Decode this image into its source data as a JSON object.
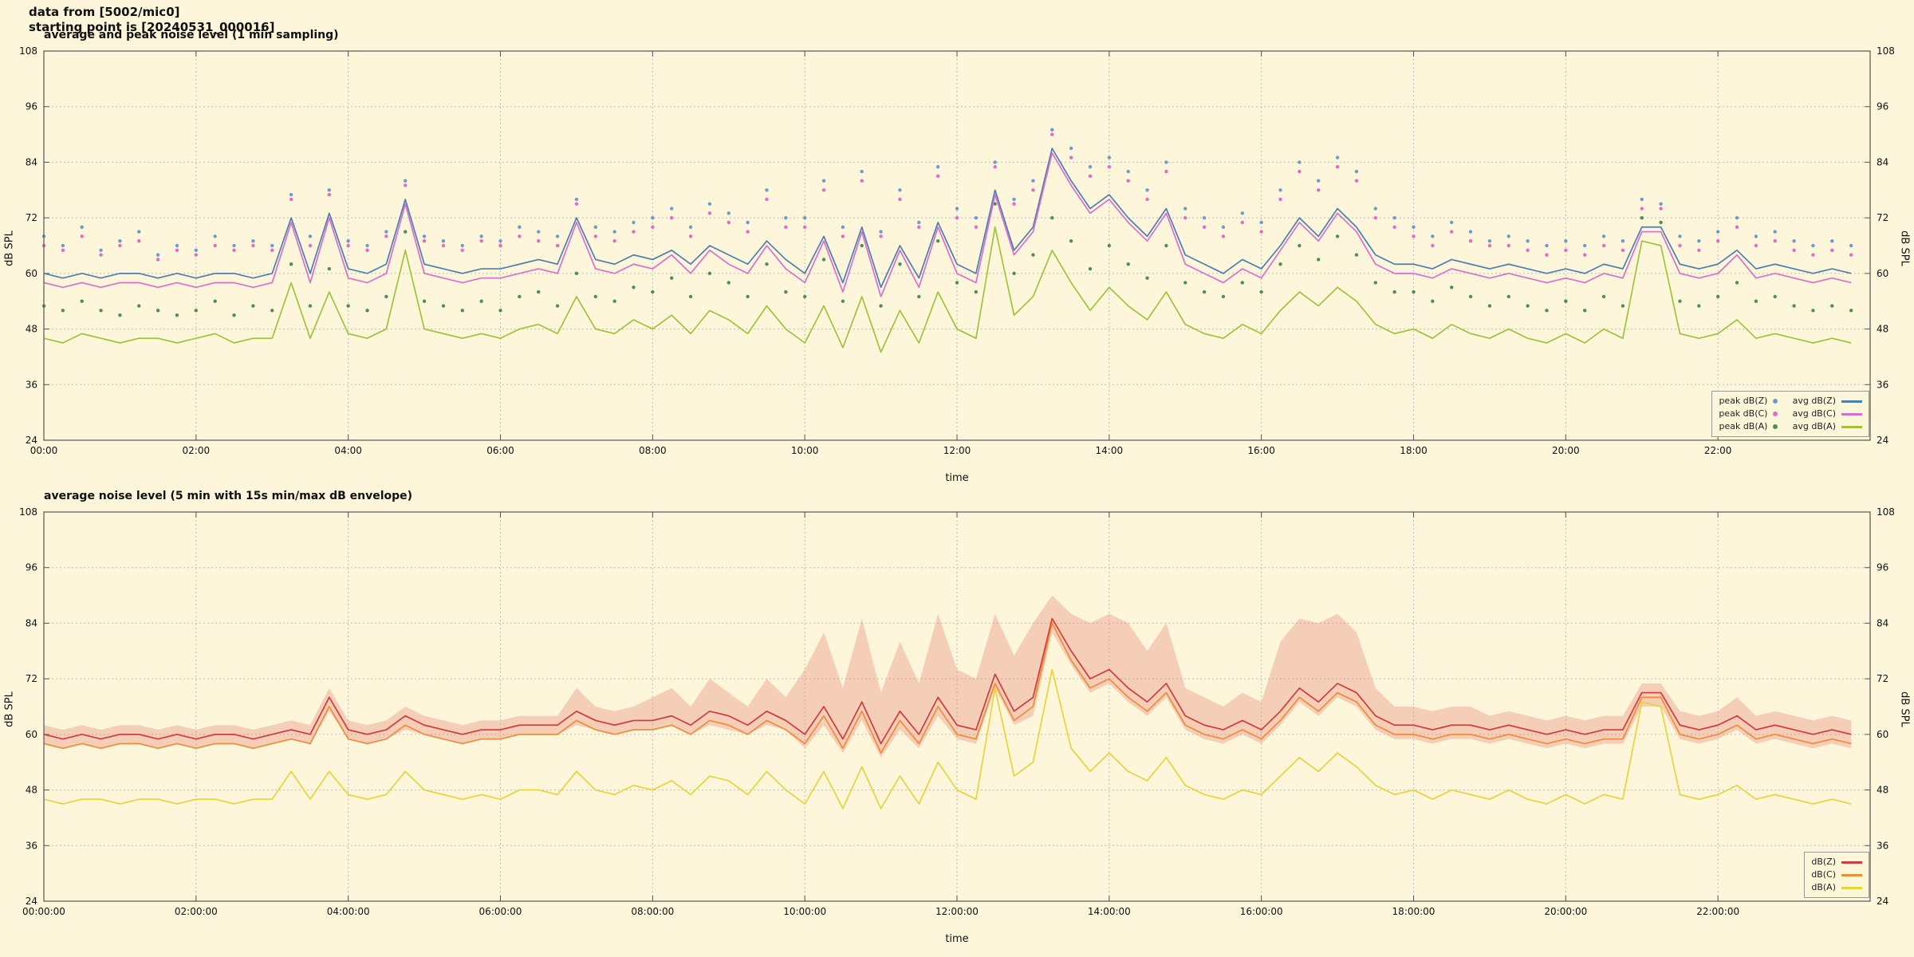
{
  "header": {
    "line1": "data from [5002/mic0]",
    "line2": "starting point is [20240531_000016]"
  },
  "colors": {
    "background": "#fdf6da",
    "grid": "#bdbdbd",
    "axis": "#555555"
  },
  "chart_data": [
    {
      "type": "line",
      "title": "average and peak noise level (1 min sampling)",
      "xlabel": "time",
      "ylabel": "dB SPL",
      "x_range": [
        0,
        24
      ],
      "y_range": [
        24,
        108
      ],
      "x_start": 0,
      "x_step": 0.25,
      "x_tick_step": 2,
      "x_tick_labels": [
        "00:00",
        "02:00",
        "04:00",
        "06:00",
        "08:00",
        "10:00",
        "12:00",
        "14:00",
        "16:00",
        "18:00",
        "20:00",
        "22:00"
      ],
      "y_ticks": [
        24,
        36,
        48,
        60,
        72,
        84,
        96,
        108
      ],
      "grid": true,
      "legend_position": "bottom-right",
      "legend_columns": [
        [
          0,
          1,
          2
        ],
        [
          3,
          4,
          5
        ]
      ],
      "series": [
        {
          "name": "peak dB(Z)",
          "type": "scatter",
          "color": "#6b9bd2",
          "values": [
            68,
            66,
            70,
            65,
            67,
            69,
            64,
            66,
            65,
            68,
            66,
            67,
            66,
            77,
            68,
            78,
            67,
            66,
            69,
            80,
            68,
            67,
            66,
            68,
            67,
            70,
            69,
            68,
            76,
            70,
            69,
            71,
            72,
            74,
            70,
            75,
            73,
            71,
            78,
            72,
            72,
            80,
            70,
            82,
            69,
            78,
            71,
            83,
            74,
            72,
            84,
            76,
            80,
            91,
            87,
            83,
            85,
            82,
            78,
            84,
            74,
            72,
            70,
            73,
            71,
            78,
            84,
            80,
            85,
            82,
            74,
            72,
            70,
            68,
            71,
            69,
            67,
            68,
            67,
            66,
            67,
            66,
            68,
            67,
            76,
            75,
            68,
            67,
            69,
            72,
            68,
            69,
            67,
            66,
            67,
            66
          ]
        },
        {
          "name": "peak dB(C)",
          "type": "scatter",
          "color": "#e36bc8",
          "values": [
            66,
            65,
            68,
            64,
            66,
            67,
            63,
            65,
            64,
            66,
            65,
            66,
            65,
            76,
            66,
            77,
            66,
            65,
            68,
            79,
            67,
            66,
            65,
            67,
            66,
            68,
            67,
            66,
            75,
            68,
            67,
            69,
            70,
            72,
            68,
            73,
            71,
            69,
            76,
            70,
            70,
            78,
            68,
            80,
            68,
            76,
            70,
            81,
            72,
            70,
            83,
            75,
            78,
            90,
            85,
            81,
            83,
            80,
            76,
            82,
            72,
            70,
            68,
            71,
            69,
            76,
            82,
            78,
            83,
            80,
            72,
            70,
            68,
            66,
            69,
            67,
            66,
            66,
            65,
            64,
            65,
            64,
            66,
            65,
            74,
            74,
            66,
            65,
            67,
            70,
            66,
            67,
            65,
            64,
            65,
            64
          ]
        },
        {
          "name": "peak dB(A)",
          "type": "scatter",
          "color": "#4f8f57",
          "values": [
            53,
            52,
            54,
            52,
            51,
            53,
            52,
            51,
            52,
            54,
            51,
            53,
            52,
            62,
            53,
            61,
            53,
            52,
            55,
            69,
            54,
            53,
            52,
            54,
            52,
            55,
            56,
            53,
            60,
            55,
            54,
            57,
            56,
            59,
            55,
            60,
            58,
            55,
            62,
            56,
            55,
            63,
            54,
            66,
            53,
            62,
            55,
            67,
            58,
            56,
            75,
            60,
            64,
            72,
            67,
            61,
            66,
            62,
            59,
            66,
            58,
            56,
            55,
            58,
            56,
            62,
            66,
            63,
            68,
            64,
            58,
            56,
            56,
            54,
            57,
            55,
            53,
            55,
            53,
            52,
            54,
            52,
            55,
            53,
            72,
            71,
            54,
            53,
            55,
            58,
            54,
            55,
            53,
            52,
            53,
            52
          ]
        },
        {
          "name": "avg dB(Z)",
          "type": "line",
          "color": "#4d7fae",
          "values": [
            60,
            59,
            60,
            59,
            60,
            60,
            59,
            60,
            59,
            60,
            60,
            59,
            60,
            72,
            60,
            73,
            61,
            60,
            62,
            76,
            62,
            61,
            60,
            61,
            61,
            62,
            63,
            62,
            72,
            63,
            62,
            64,
            63,
            65,
            62,
            66,
            64,
            62,
            67,
            63,
            60,
            68,
            58,
            70,
            57,
            66,
            59,
            71,
            62,
            60,
            78,
            65,
            70,
            87,
            80,
            74,
            77,
            72,
            68,
            74,
            64,
            62,
            60,
            63,
            61,
            66,
            72,
            68,
            74,
            70,
            64,
            62,
            62,
            61,
            63,
            62,
            61,
            62,
            61,
            60,
            61,
            60,
            62,
            61,
            70,
            70,
            62,
            61,
            62,
            65,
            61,
            62,
            61,
            60,
            61,
            60
          ]
        },
        {
          "name": "avg dB(C)",
          "type": "line",
          "color": "#d86fd0",
          "values": [
            58,
            57,
            58,
            57,
            58,
            58,
            57,
            58,
            57,
            58,
            58,
            57,
            58,
            71,
            58,
            72,
            59,
            58,
            60,
            75,
            60,
            59,
            58,
            59,
            59,
            60,
            61,
            60,
            71,
            61,
            60,
            62,
            61,
            64,
            60,
            65,
            62,
            60,
            66,
            61,
            58,
            67,
            56,
            69,
            55,
            65,
            57,
            70,
            60,
            58,
            77,
            64,
            69,
            86,
            79,
            73,
            76,
            71,
            67,
            73,
            62,
            60,
            58,
            61,
            59,
            65,
            71,
            67,
            73,
            69,
            62,
            60,
            60,
            59,
            61,
            60,
            59,
            60,
            59,
            58,
            59,
            58,
            60,
            59,
            69,
            69,
            60,
            59,
            60,
            64,
            59,
            60,
            59,
            58,
            59,
            58
          ]
        },
        {
          "name": "avg dB(A)",
          "type": "line",
          "color": "#9ec43c",
          "values": [
            46,
            45,
            47,
            46,
            45,
            46,
            46,
            45,
            46,
            47,
            45,
            46,
            46,
            58,
            46,
            56,
            47,
            46,
            48,
            65,
            48,
            47,
            46,
            47,
            46,
            48,
            49,
            47,
            55,
            48,
            47,
            50,
            48,
            51,
            47,
            52,
            50,
            47,
            53,
            48,
            45,
            53,
            44,
            55,
            43,
            52,
            45,
            56,
            48,
            46,
            70,
            51,
            55,
            65,
            58,
            52,
            57,
            53,
            50,
            56,
            49,
            47,
            46,
            49,
            47,
            52,
            56,
            53,
            57,
            54,
            49,
            47,
            48,
            46,
            49,
            47,
            46,
            48,
            46,
            45,
            47,
            45,
            48,
            46,
            67,
            66,
            47,
            46,
            47,
            50,
            46,
            47,
            46,
            45,
            46,
            45
          ]
        }
      ]
    },
    {
      "type": "line",
      "title": "average noise level (5 min with 15s min/max dB envelope)",
      "xlabel": "time",
      "ylabel": "dB SPL",
      "x_range": [
        0,
        24
      ],
      "y_range": [
        24,
        108
      ],
      "x_start": 0,
      "x_step": 0.25,
      "x_tick_step": 2,
      "x_tick_labels": [
        "00:00:00",
        "02:00:00",
        "04:00:00",
        "06:00:00",
        "08:00:00",
        "10:00:00",
        "12:00:00",
        "14:00:00",
        "16:00:00",
        "18:00:00",
        "20:00:00",
        "22:00:00"
      ],
      "y_ticks": [
        24,
        36,
        48,
        60,
        72,
        84,
        96,
        108
      ],
      "grid": true,
      "legend_position": "bottom-right",
      "legend_columns": [
        [
          0,
          1,
          2
        ]
      ],
      "envelope": {
        "color": "rgba(228,120,110,0.32)",
        "max": [
          62,
          61,
          62,
          61,
          62,
          62,
          61,
          62,
          61,
          62,
          62,
          61,
          62,
          63,
          62,
          70,
          63,
          62,
          63,
          66,
          64,
          63,
          62,
          63,
          63,
          64,
          64,
          64,
          70,
          66,
          65,
          66,
          68,
          70,
          66,
          72,
          69,
          66,
          72,
          68,
          74,
          82,
          70,
          85,
          69,
          80,
          71,
          86,
          74,
          72,
          86,
          77,
          84,
          90,
          86,
          84,
          86,
          84,
          78,
          84,
          70,
          68,
          66,
          69,
          67,
          80,
          85,
          84,
          86,
          82,
          70,
          66,
          66,
          65,
          66,
          66,
          64,
          65,
          64,
          63,
          64,
          63,
          64,
          64,
          71,
          71,
          65,
          64,
          65,
          68,
          64,
          65,
          64,
          63,
          64,
          63
        ],
        "min": [
          58,
          57,
          58,
          57,
          58,
          58,
          57,
          58,
          57,
          58,
          58,
          57,
          58,
          59,
          58,
          65,
          59,
          58,
          59,
          61,
          60,
          59,
          58,
          59,
          59,
          60,
          60,
          60,
          62,
          61,
          60,
          61,
          61,
          62,
          60,
          62,
          61,
          60,
          62,
          61,
          57,
          62,
          56,
          63,
          55,
          61,
          57,
          64,
          59,
          58,
          70,
          62,
          64,
          82,
          75,
          69,
          71,
          67,
          64,
          68,
          61,
          59,
          58,
          60,
          58,
          62,
          67,
          64,
          68,
          66,
          61,
          59,
          59,
          58,
          59,
          59,
          58,
          59,
          58,
          57,
          58,
          57,
          58,
          58,
          66,
          66,
          59,
          58,
          59,
          61,
          58,
          59,
          58,
          57,
          58,
          57
        ]
      },
      "series": [
        {
          "name": "dB(Z)",
          "type": "line",
          "color": "#d23b3b",
          "values": [
            60,
            59,
            60,
            59,
            60,
            60,
            59,
            60,
            59,
            60,
            60,
            59,
            60,
            61,
            60,
            68,
            61,
            60,
            61,
            64,
            62,
            61,
            60,
            61,
            61,
            62,
            62,
            62,
            65,
            63,
            62,
            63,
            63,
            64,
            62,
            65,
            64,
            62,
            65,
            63,
            60,
            66,
            59,
            67,
            58,
            65,
            60,
            68,
            62,
            61,
            73,
            65,
            68,
            85,
            78,
            72,
            74,
            70,
            67,
            71,
            64,
            62,
            61,
            63,
            61,
            65,
            70,
            67,
            71,
            69,
            64,
            62,
            62,
            61,
            62,
            62,
            61,
            62,
            61,
            60,
            61,
            60,
            61,
            61,
            69,
            69,
            62,
            61,
            62,
            64,
            61,
            62,
            61,
            60,
            61,
            60
          ]
        },
        {
          "name": "dB(C)",
          "type": "line",
          "color": "#ef8c3a",
          "values": [
            58,
            57,
            58,
            57,
            58,
            58,
            57,
            58,
            57,
            58,
            58,
            57,
            58,
            59,
            58,
            66,
            59,
            58,
            59,
            62,
            60,
            59,
            58,
            59,
            59,
            60,
            60,
            60,
            63,
            61,
            60,
            61,
            61,
            62,
            60,
            63,
            62,
            60,
            63,
            61,
            58,
            64,
            57,
            65,
            56,
            63,
            58,
            66,
            60,
            59,
            71,
            63,
            66,
            84,
            76,
            70,
            72,
            68,
            65,
            69,
            62,
            60,
            59,
            61,
            59,
            63,
            68,
            65,
            69,
            67,
            62,
            60,
            60,
            59,
            60,
            60,
            59,
            60,
            59,
            58,
            59,
            58,
            59,
            59,
            68,
            68,
            60,
            59,
            60,
            62,
            59,
            60,
            59,
            58,
            59,
            58
          ]
        },
        {
          "name": "dB(A)",
          "type": "line",
          "color": "#e8d33c",
          "values": [
            46,
            45,
            46,
            46,
            45,
            46,
            46,
            45,
            46,
            46,
            45,
            46,
            46,
            52,
            46,
            52,
            47,
            46,
            47,
            52,
            48,
            47,
            46,
            47,
            46,
            48,
            48,
            47,
            52,
            48,
            47,
            49,
            48,
            50,
            47,
            51,
            50,
            47,
            52,
            48,
            45,
            52,
            44,
            53,
            44,
            51,
            45,
            54,
            48,
            46,
            70,
            51,
            54,
            74,
            57,
            52,
            56,
            52,
            50,
            55,
            49,
            47,
            46,
            48,
            47,
            51,
            55,
            52,
            56,
            53,
            49,
            47,
            48,
            46,
            48,
            47,
            46,
            48,
            46,
            45,
            47,
            45,
            47,
            46,
            67,
            66,
            47,
            46,
            47,
            49,
            46,
            47,
            46,
            45,
            46,
            45
          ]
        }
      ]
    }
  ]
}
